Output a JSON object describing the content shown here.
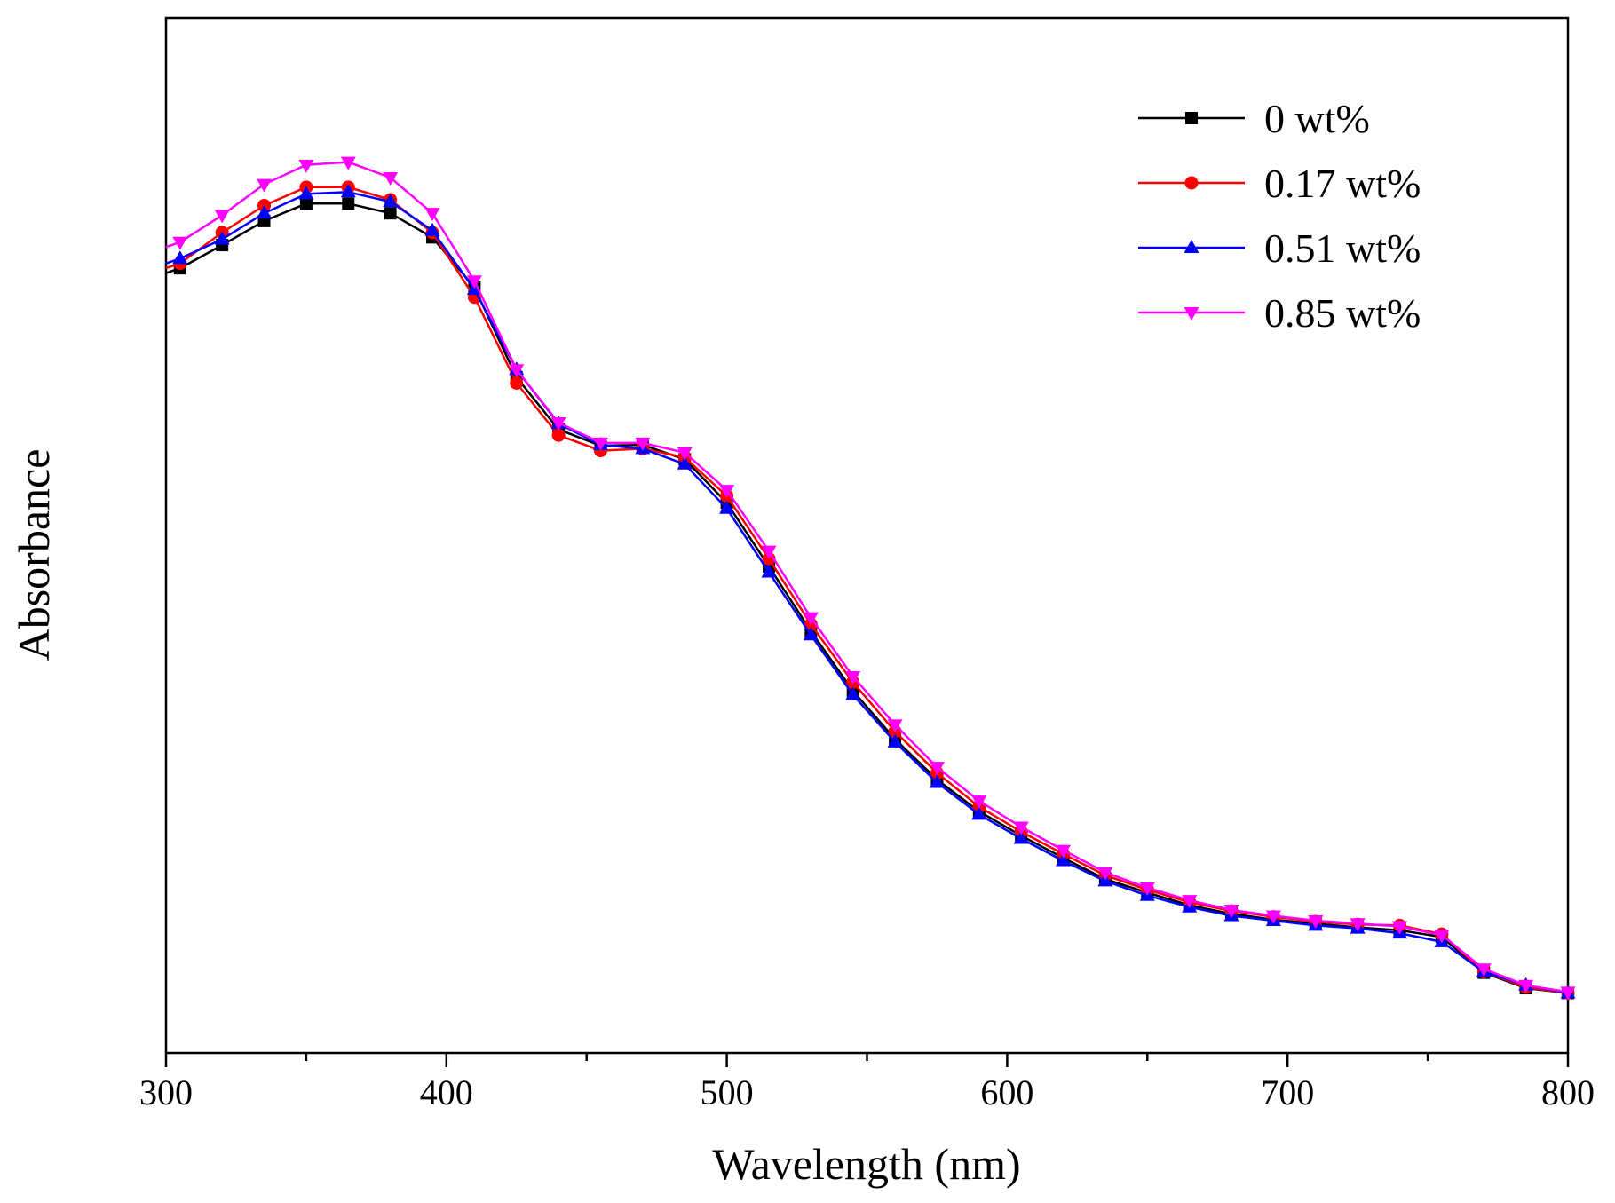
{
  "chart_data": {
    "type": "line",
    "title": "",
    "xlabel": "Wavelength (nm)",
    "ylabel": "Absorbance",
    "xlim": [
      300,
      800
    ],
    "ylim": [
      0,
      1
    ],
    "xticks": [
      300,
      400,
      500,
      600,
      700,
      800
    ],
    "xtick_labels": [
      "300",
      "400",
      "500",
      "600",
      "700",
      "800"
    ],
    "yticks_shown": false,
    "grid": false,
    "legend_position": "top-right",
    "x": [
      305,
      320,
      335,
      350,
      365,
      380,
      395,
      410,
      425,
      440,
      455,
      470,
      485,
      500,
      515,
      530,
      545,
      560,
      575,
      590,
      605,
      620,
      635,
      650,
      665,
      680,
      695,
      710,
      725,
      740,
      755,
      770,
      785,
      800
    ],
    "series": [
      {
        "name": "0 wt%",
        "color": "#000000",
        "marker": "square",
        "values": [
          0.803,
          0.827,
          0.852,
          0.87,
          0.87,
          0.86,
          0.835,
          0.783,
          0.69,
          0.636,
          0.619,
          0.62,
          0.605,
          0.56,
          0.494,
          0.427,
          0.365,
          0.315,
          0.273,
          0.24,
          0.215,
          0.192,
          0.17,
          0.156,
          0.143,
          0.134,
          0.128,
          0.124,
          0.12,
          0.117,
          0.11,
          0.073,
          0.057,
          0.052
        ]
      },
      {
        "name": "0.17 wt%",
        "color": "#ff0000",
        "marker": "circle",
        "values": [
          0.808,
          0.84,
          0.868,
          0.887,
          0.887,
          0.874,
          0.84,
          0.773,
          0.684,
          0.63,
          0.614,
          0.616,
          0.607,
          0.567,
          0.502,
          0.434,
          0.374,
          0.323,
          0.28,
          0.245,
          0.219,
          0.196,
          0.174,
          0.159,
          0.146,
          0.137,
          0.131,
          0.126,
          0.123,
          0.122,
          0.113,
          0.074,
          0.058,
          0.052
        ]
      },
      {
        "name": "0.51 wt%",
        "color": "#0000ff",
        "marker": "triangle-up",
        "values": [
          0.813,
          0.833,
          0.86,
          0.88,
          0.882,
          0.872,
          0.842,
          0.781,
          0.698,
          0.642,
          0.62,
          0.616,
          0.6,
          0.554,
          0.488,
          0.423,
          0.361,
          0.312,
          0.27,
          0.237,
          0.212,
          0.189,
          0.168,
          0.153,
          0.141,
          0.132,
          0.127,
          0.122,
          0.119,
          0.114,
          0.105,
          0.074,
          0.06,
          0.052
        ]
      },
      {
        "name": "0.85 wt%",
        "color": "#ff00ff",
        "marker": "triangle-down",
        "values": [
          0.83,
          0.858,
          0.89,
          0.91,
          0.913,
          0.897,
          0.86,
          0.79,
          0.698,
          0.643,
          0.622,
          0.622,
          0.612,
          0.573,
          0.51,
          0.441,
          0.38,
          0.33,
          0.286,
          0.251,
          0.224,
          0.2,
          0.177,
          0.161,
          0.148,
          0.138,
          0.132,
          0.127,
          0.124,
          0.121,
          0.112,
          0.077,
          0.06,
          0.053
        ]
      }
    ]
  }
}
